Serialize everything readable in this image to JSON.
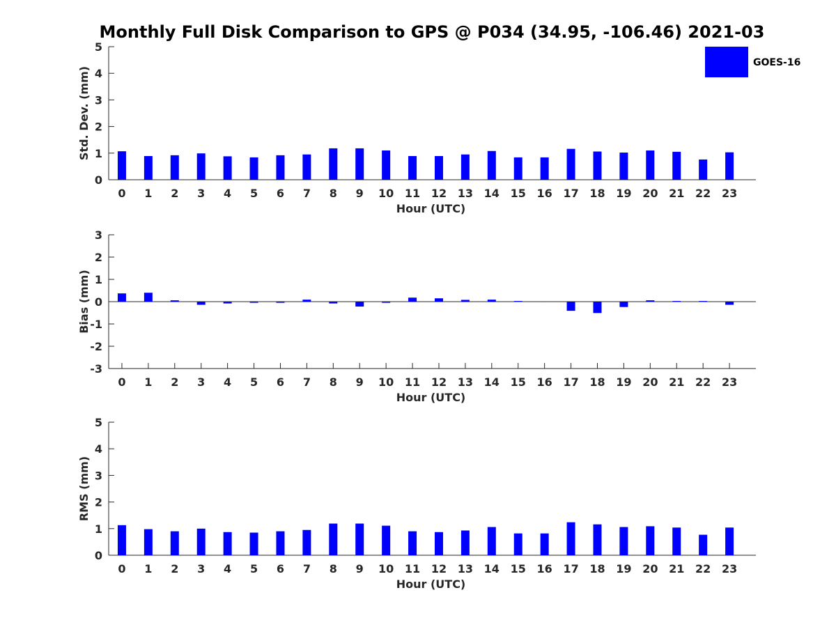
{
  "chart_data": {
    "type": "bar",
    "title": "Monthly Full Disk Comparison to GPS @ P034 (34.95, -106.46) 2021-03",
    "legend": {
      "label": "GOES-16",
      "color": "#0000ff",
      "position": "top-right"
    },
    "panels": [
      {
        "id": "std",
        "ylabel": "Std. Dev. (mm)",
        "xlabel": "Hour (UTC)",
        "ylim": [
          0,
          5
        ],
        "yticks": [
          0,
          1,
          2,
          3,
          4,
          5
        ],
        "categories": [
          "0",
          "1",
          "2",
          "3",
          "4",
          "5",
          "6",
          "7",
          "8",
          "9",
          "10",
          "11",
          "12",
          "13",
          "14",
          "15",
          "16",
          "17",
          "18",
          "19",
          "20",
          "21",
          "22",
          "23"
        ],
        "series": [
          {
            "name": "GOES-16",
            "color": "#0000ff",
            "values": [
              1.07,
              0.89,
              0.92,
              0.99,
              0.88,
              0.84,
              0.92,
              0.95,
              1.18,
              1.18,
              1.1,
              0.89,
              0.89,
              0.95,
              1.08,
              0.84,
              0.84,
              1.16,
              1.06,
              1.02,
              1.1,
              1.05,
              0.76,
              1.03
            ]
          }
        ]
      },
      {
        "id": "bias",
        "ylabel": "Bias (mm)",
        "xlabel": "Hour (UTC)",
        "ylim": [
          -3,
          3
        ],
        "yticks": [
          -3,
          -2,
          -1,
          0,
          1,
          2,
          3
        ],
        "categories": [
          "0",
          "1",
          "2",
          "3",
          "4",
          "5",
          "6",
          "7",
          "8",
          "9",
          "10",
          "11",
          "12",
          "13",
          "14",
          "15",
          "16",
          "17",
          "18",
          "19",
          "20",
          "21",
          "22",
          "23"
        ],
        "series": [
          {
            "name": "GOES-16",
            "color": "#0000ff",
            "values": [
              0.37,
              0.4,
              0.06,
              -0.14,
              -0.08,
              -0.05,
              -0.05,
              0.09,
              -0.08,
              -0.22,
              -0.05,
              0.18,
              0.15,
              0.08,
              0.09,
              0.03,
              -0.01,
              -0.41,
              -0.51,
              -0.24,
              0.06,
              0.03,
              0.03,
              -0.14
            ]
          }
        ]
      },
      {
        "id": "rms",
        "ylabel": "RMS (mm)",
        "xlabel": "Hour (UTC)",
        "ylim": [
          0,
          5
        ],
        "yticks": [
          0,
          1,
          2,
          3,
          4,
          5
        ],
        "categories": [
          "0",
          "1",
          "2",
          "3",
          "4",
          "5",
          "6",
          "7",
          "8",
          "9",
          "10",
          "11",
          "12",
          "13",
          "14",
          "15",
          "16",
          "17",
          "18",
          "19",
          "20",
          "21",
          "22",
          "23"
        ],
        "series": [
          {
            "name": "GOES-16",
            "color": "#0000ff",
            "values": [
              1.13,
              0.98,
              0.9,
              1.0,
              0.87,
              0.85,
              0.9,
              0.95,
              1.19,
              1.19,
              1.11,
              0.9,
              0.87,
              0.93,
              1.06,
              0.82,
              0.82,
              1.24,
              1.16,
              1.06,
              1.09,
              1.04,
              0.77,
              1.04
            ]
          }
        ]
      }
    ]
  }
}
